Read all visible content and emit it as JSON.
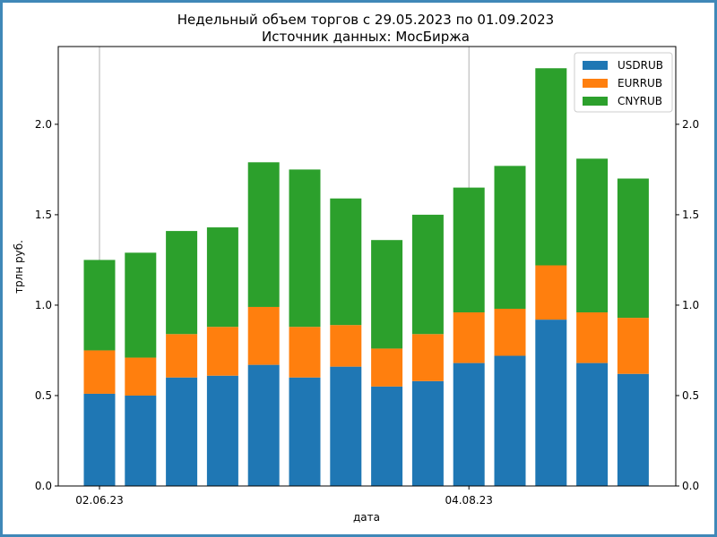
{
  "chart_data": {
    "type": "bar",
    "stacked": true,
    "title": "Недельный объем торгов с 29.05.2023 по 01.09.2023",
    "subtitle": "Источник данных: МосБиржа",
    "xlabel": "дата",
    "ylabel": "трлн руб.",
    "ylim": [
      0,
      2.43
    ],
    "yticks": [
      "0.0",
      "0.5",
      "1.0",
      "1.5",
      "2.0"
    ],
    "ytick_values": [
      0,
      0.5,
      1.0,
      1.5,
      2.0
    ],
    "xtick_labels": [
      "02.06.23",
      "04.08.23"
    ],
    "xtick_indices": [
      0,
      9
    ],
    "bar_count": 14,
    "grid": true,
    "right_axis_mirror": true,
    "legend_position": "top-right",
    "series": [
      {
        "name": "USDRUB",
        "color": "#1f77b4",
        "values": [
          0.51,
          0.5,
          0.6,
          0.61,
          0.67,
          0.6,
          0.66,
          0.55,
          0.58,
          0.68,
          0.72,
          0.92,
          0.68,
          0.62
        ]
      },
      {
        "name": "EURRUB",
        "color": "#ff7f0e",
        "values": [
          0.24,
          0.21,
          0.24,
          0.27,
          0.32,
          0.28,
          0.23,
          0.21,
          0.26,
          0.28,
          0.26,
          0.3,
          0.28,
          0.31
        ]
      },
      {
        "name": "CNYRUB",
        "color": "#2ca02c",
        "values": [
          0.5,
          0.58,
          0.57,
          0.55,
          0.8,
          0.87,
          0.7,
          0.6,
          0.66,
          0.69,
          0.79,
          1.09,
          0.85,
          0.77
        ]
      }
    ]
  }
}
